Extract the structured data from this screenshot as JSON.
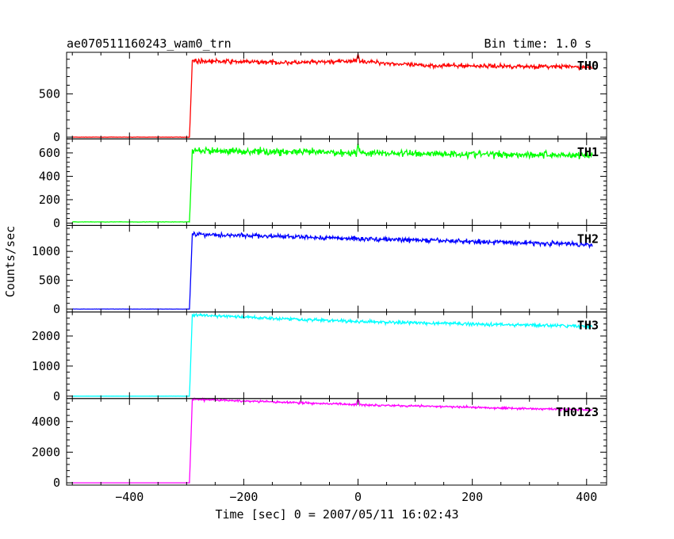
{
  "header": {
    "title": "ae070511160243_wam0_trn",
    "bin_time": "Bin time: 1.0 s"
  },
  "xlabel": "Time [sec] 0 = 2007/05/11 16:02:43",
  "ylabel": "Counts/sec",
  "chart_data": {
    "type": "line",
    "title": "ae070511160243_wam0_trn",
    "xlabel": "Time [sec] 0 = 2007/05/11 16:02:43",
    "ylabel": "Counts/sec",
    "xlim": [
      -510,
      435
    ],
    "x_ticks": [
      -400,
      -200,
      0,
      200,
      400
    ],
    "x_tick_labels": [
      "−400",
      "−200",
      "0",
      "200",
      "400"
    ],
    "grid": false,
    "x_range_data": [
      -500,
      410
    ],
    "onset_time": -295,
    "panels": [
      {
        "name": "TH0",
        "color": "#ff0000",
        "ylim": [
          -20,
          980
        ],
        "yticks": [
          0,
          500
        ],
        "ytick_labels": [
          "0",
          "500"
        ],
        "baseline": 0,
        "peak_time": -290,
        "levels": [
          [
            -290,
            880
          ],
          [
            -100,
            860
          ],
          [
            0,
            880
          ],
          [
            100,
            830
          ],
          [
            410,
            810
          ]
        ],
        "noise": 25,
        "spike": {
          "x": 0,
          "value": 960
        }
      },
      {
        "name": "TH1",
        "color": "#00ff00",
        "ylim": [
          -20,
          720
        ],
        "yticks": [
          0,
          200,
          400,
          600
        ],
        "ytick_labels": [
          "0",
          "200",
          "400",
          "600"
        ],
        "baseline": 10,
        "peak_time": -290,
        "levels": [
          [
            -290,
            620
          ],
          [
            0,
            600
          ],
          [
            410,
            580
          ]
        ],
        "noise": 30,
        "spike": {
          "x": 0,
          "value": 680
        }
      },
      {
        "name": "TH2",
        "color": "#0000ff",
        "ylim": [
          -50,
          1450
        ],
        "yticks": [
          0,
          500,
          1000
        ],
        "ytick_labels": [
          "0",
          "500",
          "1000"
        ],
        "baseline": 0,
        "peak_time": -290,
        "levels": [
          [
            -290,
            1300
          ],
          [
            0,
            1220
          ],
          [
            410,
            1120
          ]
        ],
        "noise": 40,
        "spike": null
      },
      {
        "name": "TH3",
        "color": "#00ffff",
        "ylim": [
          -80,
          2800
        ],
        "yticks": [
          0,
          1000,
          2000
        ],
        "ytick_labels": [
          "0",
          "1000",
          "2000"
        ],
        "baseline": 0,
        "peak_time": -290,
        "levels": [
          [
            -290,
            2700
          ],
          [
            0,
            2480
          ],
          [
            410,
            2320
          ]
        ],
        "noise": 55,
        "spike": null
      },
      {
        "name": "TH0123",
        "color": "#ff00ff",
        "ylim": [
          -150,
          5500
        ],
        "yticks": [
          0,
          2000,
          4000
        ],
        "ytick_labels": [
          "0",
          "2000",
          "4000"
        ],
        "baseline": 0,
        "peak_time": -290,
        "levels": [
          [
            -290,
            5450
          ],
          [
            0,
            5100
          ],
          [
            410,
            4750
          ]
        ],
        "noise": 70,
        "spike": {
          "x": 0,
          "value": 5450
        }
      }
    ]
  }
}
